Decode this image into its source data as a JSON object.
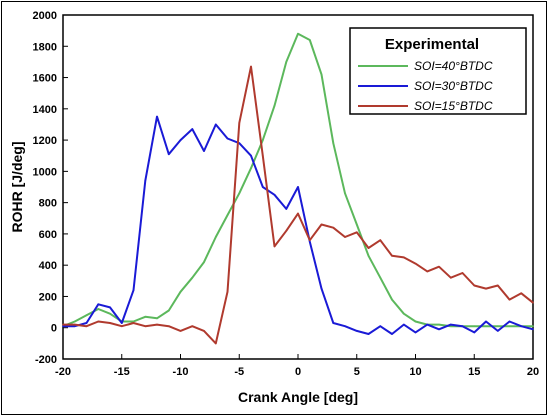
{
  "chart_data": {
    "type": "line",
    "xlabel": "Crank Angle [deg]",
    "ylabel": "ROHR [J/deg]",
    "xlim": [
      -20,
      20
    ],
    "ylim": [
      -200,
      2000
    ],
    "x_ticks": [
      "-20",
      "-15",
      "-10",
      "-5",
      "0",
      "5",
      "10",
      "15",
      "20"
    ],
    "y_ticks": [
      "-200",
      "0",
      "200",
      "400",
      "600",
      "800",
      "1000",
      "1200",
      "1400",
      "1600",
      "1800",
      "2000"
    ],
    "legend": {
      "title": "Experimental",
      "position": "top-right"
    },
    "grid": false,
    "series": [
      {
        "name": "SOI=40°BTDC",
        "color": "#5cb85c",
        "x": [
          -20,
          -19,
          -18,
          -17,
          -16,
          -15,
          -14,
          -13,
          -12,
          -11,
          -10,
          -9,
          -8,
          -7,
          -6,
          -5,
          -4,
          -3,
          -2,
          -1,
          0,
          1,
          2,
          3,
          4,
          5,
          6,
          7,
          8,
          9,
          10,
          11,
          12,
          13,
          14,
          15,
          16,
          17,
          18,
          19,
          20
        ],
        "y": [
          10,
          40,
          80,
          120,
          90,
          40,
          40,
          70,
          60,
          110,
          230,
          320,
          420,
          580,
          720,
          860,
          1020,
          1200,
          1420,
          1700,
          1880,
          1840,
          1620,
          1180,
          860,
          660,
          460,
          320,
          180,
          90,
          40,
          20,
          20,
          10,
          10,
          10,
          10,
          10,
          10,
          10,
          10
        ]
      },
      {
        "name": "SOI=30°BTDC",
        "color": "#1a1ad6",
        "x": [
          -20,
          -19,
          -18,
          -17,
          -16,
          -15,
          -14,
          -13,
          -12,
          -11,
          -10,
          -9,
          -8,
          -7,
          -6,
          -5,
          -4,
          -3,
          -2,
          -1,
          0,
          1,
          2,
          3,
          4,
          5,
          6,
          7,
          8,
          9,
          10,
          11,
          12,
          13,
          14,
          15,
          16,
          17,
          18,
          19,
          20
        ],
        "y": [
          10,
          10,
          30,
          150,
          130,
          30,
          240,
          940,
          1350,
          1110,
          1200,
          1270,
          1130,
          1300,
          1210,
          1180,
          1100,
          900,
          850,
          760,
          900,
          550,
          250,
          30,
          10,
          -20,
          -40,
          10,
          -40,
          20,
          -30,
          20,
          -10,
          20,
          10,
          -30,
          40,
          -20,
          40,
          10,
          -10
        ]
      },
      {
        "name": "SOI=15°BTDC",
        "color": "#b03a2e",
        "x": [
          -20,
          -19,
          -18,
          -17,
          -16,
          -15,
          -14,
          -13,
          -12,
          -11,
          -10,
          -9,
          -8,
          -7,
          -6,
          -5,
          -4,
          -3,
          -2,
          -1,
          0,
          1,
          2,
          3,
          4,
          5,
          6,
          7,
          8,
          9,
          10,
          11,
          12,
          13,
          14,
          15,
          16,
          17,
          18,
          19,
          20
        ],
        "y": [
          20,
          20,
          10,
          40,
          30,
          10,
          30,
          10,
          20,
          10,
          -20,
          10,
          -20,
          -100,
          230,
          1310,
          1670,
          1100,
          520,
          620,
          730,
          560,
          660,
          640,
          580,
          610,
          510,
          560,
          460,
          450,
          410,
          360,
          390,
          320,
          350,
          270,
          250,
          270,
          180,
          220,
          160
        ]
      }
    ]
  }
}
